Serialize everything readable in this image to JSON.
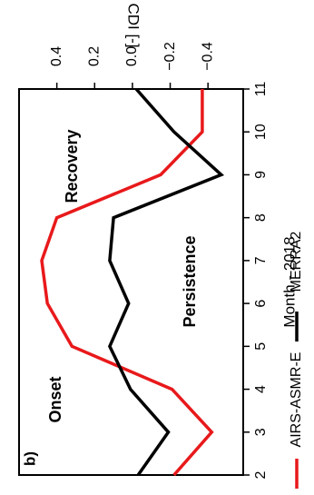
{
  "chart_data": {
    "type": "line",
    "panel_label": "b)",
    "orientation": "rotated-90-clockwise",
    "xlabel": "Month - 2018",
    "ylabel": "CDI [-]",
    "xlim": [
      2,
      11
    ],
    "ylim": [
      -0.5,
      0.6
    ],
    "x_ticks": [
      "2",
      "3",
      "4",
      "5",
      "6",
      "7",
      "8",
      "9",
      "10",
      "11"
    ],
    "y_ticks": [
      "0.4",
      "0.2",
      "0.0",
      "−0.2",
      "−0.4"
    ],
    "y_tick_values": [
      0.4,
      0.2,
      0.0,
      -0.2,
      -0.4
    ],
    "grid": false,
    "legend_position": "bottom",
    "series": [
      {
        "name": "AIRS-ASMR-E",
        "color": "#e8191b",
        "x": [
          2,
          3,
          4,
          5,
          6,
          7,
          8,
          9,
          10,
          11
        ],
        "values": [
          -0.22,
          -0.42,
          -0.21,
          0.32,
          0.45,
          0.48,
          0.4,
          -0.15,
          -0.37,
          -0.37
        ]
      },
      {
        "name": "MERRA2",
        "color": "#000000",
        "x": [
          2,
          3,
          4,
          5,
          6,
          7,
          8,
          9,
          10,
          11
        ],
        "values": [
          -0.03,
          -0.19,
          0.01,
          0.12,
          0.02,
          0.12,
          0.1,
          -0.47,
          -0.22,
          -0.02
        ]
      }
    ],
    "annotations": [
      "Onset",
      "Persistence",
      "Recovery"
    ]
  }
}
